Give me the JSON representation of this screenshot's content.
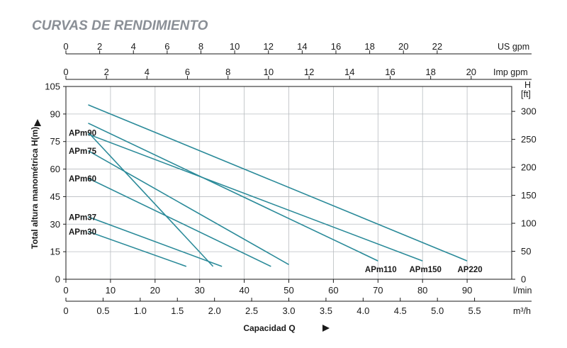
{
  "chart_data": {
    "type": "line",
    "title": "CURVAS DE RENDIMIENTO",
    "ylabel": "Total altura manométrica H(m)",
    "xlabel": "Capacidad Q",
    "x_units": {
      "lmin": "l/min",
      "m3h": "m³/h",
      "imp": "Imp gpm",
      "us": "US gpm"
    },
    "y_right_units": {
      "symbol": "H",
      "unit": "[ft]"
    },
    "xlim": [
      0,
      100
    ],
    "ylim": [
      0,
      105
    ],
    "grid": true,
    "x_ticks_lmin": [
      "0",
      "10",
      "20",
      "30",
      "40",
      "50",
      "60",
      "70",
      "80",
      "90"
    ],
    "x_ticks_m3h": [
      "0",
      "0.5",
      "1.0",
      "1.5",
      "2.0",
      "2.5",
      "3.0",
      "3.5",
      "4.0",
      "4.5",
      "5.0",
      "5.5"
    ],
    "x_ticks_imp": [
      "0",
      "2",
      "4",
      "6",
      "8",
      "10",
      "12",
      "14",
      "16",
      "18",
      "20"
    ],
    "x_ticks_us": [
      "0",
      "2",
      "4",
      "6",
      "8",
      "10",
      "12",
      "14",
      "16",
      "18",
      "20",
      "22"
    ],
    "y_ticks_m": [
      "0",
      "15",
      "30",
      "45",
      "60",
      "75",
      "90",
      "105"
    ],
    "y_ticks_ft": [
      "0",
      "50",
      "100",
      "150",
      "200",
      "250",
      "300"
    ],
    "series": [
      {
        "name": "APm30",
        "x": [
          5,
          27
        ],
        "y": [
          26,
          7
        ],
        "label_side": "left"
      },
      {
        "name": "APm37",
        "x": [
          5,
          35
        ],
        "y": [
          34,
          7
        ],
        "label_side": "left"
      },
      {
        "name": "APm60",
        "x": [
          5,
          46
        ],
        "y": [
          55,
          7
        ],
        "label_side": "left"
      },
      {
        "name": "APm75",
        "x": [
          5,
          50
        ],
        "y": [
          70,
          8
        ],
        "label_side": "left"
      },
      {
        "name": "APm90",
        "x": [
          5,
          33
        ],
        "y": [
          80,
          7
        ],
        "label_side": "left"
      },
      {
        "name": "APm110",
        "x": [
          5,
          70
        ],
        "y": [
          85,
          10
        ],
        "label_side": "right"
      },
      {
        "name": "APm150",
        "x": [
          5,
          80
        ],
        "y": [
          79,
          10
        ],
        "label_side": "right"
      },
      {
        "name": "AP220",
        "x": [
          5,
          90
        ],
        "y": [
          95,
          10
        ],
        "label_side": "right"
      }
    ],
    "line_color": "#2a8a99"
  }
}
